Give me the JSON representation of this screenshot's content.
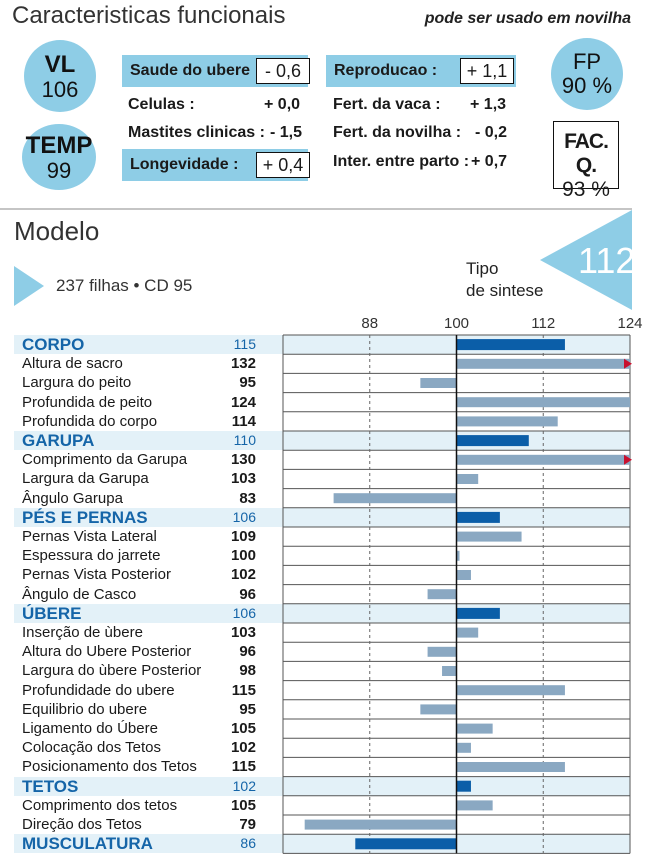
{
  "header": {
    "title": "Caracteristicas funcionais",
    "note": "pode ser usado em novilha"
  },
  "badges": {
    "vl": {
      "key": "VL",
      "value": "106"
    },
    "temp": {
      "key": "TEMP",
      "value": "99"
    },
    "fp": {
      "key": "FP",
      "value": "90 %"
    },
    "facq": {
      "key": "FAC. Q.",
      "value": "93 %"
    }
  },
  "functional": {
    "saude": {
      "label": "Saude do ubere :",
      "value": "- 0,6"
    },
    "celulas": {
      "label": "Celulas :",
      "value": "+ 0,0"
    },
    "mastites": {
      "label": "Mastites clinicas :",
      "value": "- 1,5"
    },
    "longevidade": {
      "label": "Longevidade :",
      "value": "+ 0,4"
    },
    "reproducao": {
      "label": "Reproducao :",
      "value": "+ 1,1"
    },
    "fert_vaca": {
      "label": "Fert. da vaca :",
      "value": "+ 1,3"
    },
    "fert_novilha": {
      "label": "Fert. da novilha :",
      "value": "- 0,2"
    },
    "inter_parto": {
      "label": "Inter. entre parto :",
      "value": "+ 0,7"
    }
  },
  "modelo": {
    "title": "Modelo",
    "filhas": "237 filhas • CD 95",
    "tipo_label_1": "Tipo",
    "tipo_label_2": "de sintese",
    "tipo_value": "112"
  },
  "colors": {
    "accent": "#8ecde6",
    "group_bar": "#0b5ea8",
    "trait_bar": "#8aa8c2",
    "group_text": "#1565a8",
    "arrow": "#c8102e",
    "group_row_bg": "#e3f1f8"
  },
  "chart_data": {
    "type": "bar",
    "orientation": "horizontal",
    "xlim": [
      76,
      124
    ],
    "xticks": [
      88,
      100,
      112,
      124
    ],
    "baseline": 100,
    "grid": "dashed vertical lines at ticks",
    "rows": [
      {
        "label": "CORPO",
        "value": 115,
        "group": true
      },
      {
        "label": "Altura de sacro",
        "value": 132,
        "group": false
      },
      {
        "label": "Largura do peito",
        "value": 95,
        "group": false
      },
      {
        "label": "Profundida de peito",
        "value": 124,
        "group": false
      },
      {
        "label": "Profundida do corpo",
        "value": 114,
        "group": false
      },
      {
        "label": "GARUPA",
        "value": 110,
        "group": true
      },
      {
        "label": "Comprimento da Garupa",
        "value": 130,
        "group": false
      },
      {
        "label": "Largura da Garupa",
        "value": 103,
        "group": false
      },
      {
        "label": "Ângulo Garupa",
        "value": 83,
        "group": false
      },
      {
        "label": "PÉS E PERNAS",
        "value": 106,
        "group": true
      },
      {
        "label": "Pernas Vista Lateral",
        "value": 109,
        "group": false
      },
      {
        "label": "Espessura do jarrete",
        "value": 100,
        "group": false
      },
      {
        "label": "Pernas Vista Posterior",
        "value": 102,
        "group": false
      },
      {
        "label": "Ângulo de Casco",
        "value": 96,
        "group": false
      },
      {
        "label": "ÚBERE",
        "value": 106,
        "group": true
      },
      {
        "label": "Inserção de ùbere",
        "value": 103,
        "group": false
      },
      {
        "label": "Altura do Ubere Posterior",
        "value": 96,
        "group": false
      },
      {
        "label": "Largura do ùbere Posterior",
        "value": 98,
        "group": false
      },
      {
        "label": "Profundidade do ubere",
        "value": 115,
        "group": false
      },
      {
        "label": "Equilibrio do ubere",
        "value": 95,
        "group": false
      },
      {
        "label": "Ligamento do Úbere",
        "value": 105,
        "group": false
      },
      {
        "label": "Colocação dos Tetos",
        "value": 102,
        "group": false
      },
      {
        "label": "Posicionamento dos Tetos",
        "value": 115,
        "group": false
      },
      {
        "label": "TETOS",
        "value": 102,
        "group": true
      },
      {
        "label": "Comprimento dos tetos",
        "value": 105,
        "group": false
      },
      {
        "label": "Direção dos Tetos",
        "value": 79,
        "group": false
      },
      {
        "label": "MUSCULATURA",
        "value": 86,
        "group": true
      }
    ]
  }
}
